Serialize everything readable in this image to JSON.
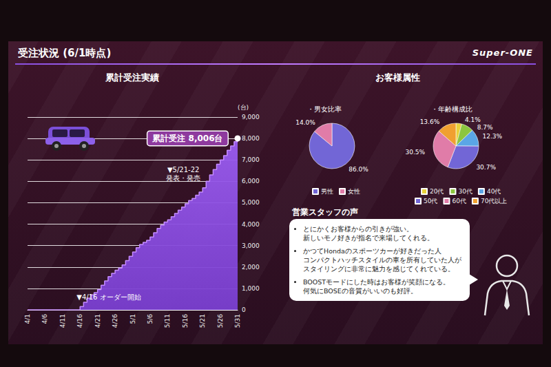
{
  "header": {
    "title": "受注状況 (6/1時点)",
    "logo": "Super-ONE"
  },
  "customer_attributes": {
    "title": "お客様属性"
  },
  "chart_data": [
    {
      "type": "area",
      "title": "累計受注実績",
      "ylabel": "(台)",
      "categories": [
        "4/1",
        null,
        null,
        null,
        null,
        "4/6",
        null,
        null,
        null,
        null,
        "4/11",
        null,
        null,
        null,
        null,
        "4/16",
        null,
        null,
        null,
        null,
        "4/21",
        null,
        null,
        null,
        null,
        "4/26",
        null,
        null,
        null,
        null,
        "5/1",
        null,
        null,
        null,
        null,
        "5/6",
        null,
        null,
        null,
        null,
        "5/11",
        null,
        null,
        null,
        null,
        "5/16",
        null,
        null,
        null,
        null,
        "5/21",
        null,
        null,
        null,
        null,
        "5/26",
        null,
        null,
        null,
        null,
        "5/31"
      ],
      "values": [
        0,
        0,
        0,
        0,
        0,
        0,
        0,
        0,
        0,
        0,
        0,
        0,
        0,
        0,
        0,
        150,
        350,
        550,
        700,
        800,
        950,
        1150,
        1350,
        1550,
        1700,
        1850,
        1950,
        2100,
        2300,
        2500,
        2700,
        2900,
        3050,
        3150,
        3250,
        3400,
        3600,
        3800,
        3950,
        4100,
        4200,
        4350,
        4500,
        4650,
        4800,
        4950,
        5100,
        5200,
        5350,
        5500,
        5700,
        6000,
        6300,
        6550,
        6800,
        7000,
        7200,
        7450,
        7650,
        7850,
        8006
      ],
      "color": "#9b5cf0",
      "ylim": [
        0,
        9000
      ],
      "yticks": [
        0,
        {
          "value": 1000,
          "label": "1,000"
        },
        {
          "value": 2000,
          "label": "2,000"
        },
        {
          "value": 3000,
          "label": "3,000"
        },
        {
          "value": 4000,
          "label": "4,000"
        },
        {
          "value": 5000,
          "label": "5,000"
        },
        {
          "value": 6000,
          "label": "6,000"
        },
        {
          "value": 7000,
          "label": "7,000"
        },
        {
          "value": 8000,
          "label": "8,000"
        },
        {
          "value": 9000,
          "label": "9,000"
        }
      ],
      "grid": true,
      "callout": {
        "x": "5/31",
        "text": "累計受注 8,006台"
      },
      "annotations": [
        {
          "x": "5/21",
          "lines": [
            "▼5/21-22",
            "発表・発売"
          ]
        },
        {
          "x": "4/16",
          "lines": [
            "▼4/16 オーダー開始"
          ]
        }
      ]
    },
    {
      "type": "pie",
      "title": "・男女比率",
      "categories": [
        "男性",
        "女性"
      ],
      "values": [
        86.0,
        14.0
      ],
      "value_labels": [
        "86.0%",
        "14.0%"
      ],
      "colors": [
        "#7266d6",
        "#e07ca8"
      ],
      "data_labels": true,
      "legend": "bottom"
    },
    {
      "type": "pie",
      "title": "・年齢構成比",
      "categories": [
        "20代",
        "30代",
        "40代",
        "50代",
        "60代",
        "70代以上"
      ],
      "values": [
        4.1,
        8.7,
        12.3,
        30.7,
        30.5,
        13.6
      ],
      "value_labels": [
        "4.1%",
        "8.7%",
        "12.3%",
        "30.7%",
        "30.5%",
        "13.6%"
      ],
      "colors": [
        "#e8d23a",
        "#8cc63f",
        "#5aa6e6",
        "#7266d6",
        "#e07ca8",
        "#f0a030"
      ],
      "data_labels": true,
      "legend": "bottom"
    }
  ],
  "staff_voice": {
    "title": "営業スタッフの声",
    "items": [
      [
        "とにかくお客様からの引きが強い。",
        "新しいモノ好きが指名で来場してくれる。"
      ],
      [
        "かつてHondaのスポーツカーが好きだった人",
        "コンパクトハッチスタイルの車を所有していた人が",
        "スタイリングに非常に魅力を感じてくれている。"
      ],
      [
        "BOOSTモードにした時はお客様が笑顔になる。",
        "何気にBOSEの音質がいいのも好評。"
      ]
    ]
  }
}
